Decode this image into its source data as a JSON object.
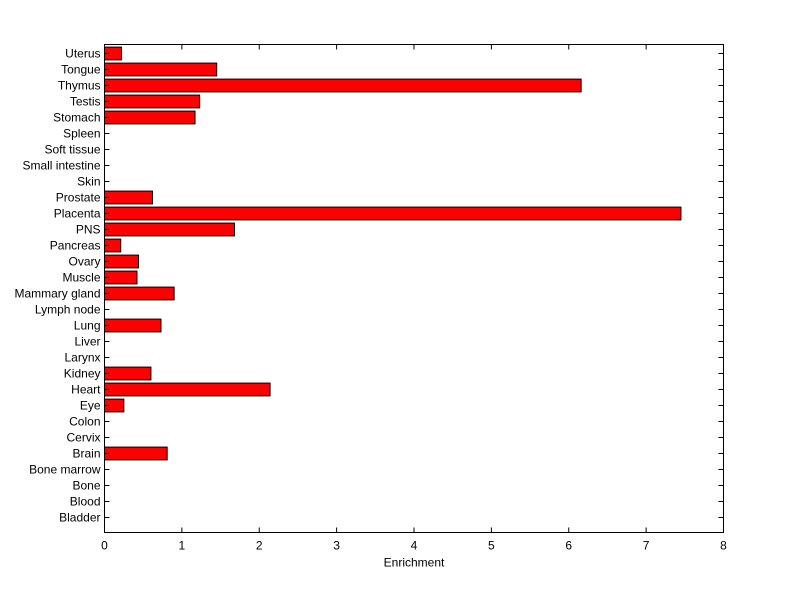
{
  "chart_data": {
    "type": "bar",
    "orientation": "horizontal",
    "categories": [
      "Uterus",
      "Tongue",
      "Thymus",
      "Testis",
      "Stomach",
      "Spleen",
      "Soft tissue",
      "Small intestine",
      "Skin",
      "Prostate",
      "Placenta",
      "PNS",
      "Pancreas",
      "Ovary",
      "Muscle",
      "Mammary gland",
      "Lymph node",
      "Lung",
      "Liver",
      "Larynx",
      "Kidney",
      "Heart",
      "Eye",
      "Colon",
      "Cervix",
      "Brain",
      "Bone marrow",
      "Bone",
      "Blood",
      "Bladder"
    ],
    "values": [
      0.22,
      1.45,
      6.16,
      1.23,
      1.17,
      0,
      0,
      0,
      0,
      0.62,
      7.45,
      1.68,
      0.21,
      0.44,
      0.42,
      0.9,
      0,
      0.73,
      0,
      0,
      0.6,
      2.14,
      0.25,
      0,
      0,
      0.81,
      0,
      0,
      0,
      0
    ],
    "xlabel": "Enrichment",
    "ylabel": "",
    "xlim": [
      0,
      8
    ],
    "xticks": [
      0,
      1,
      2,
      3,
      4,
      5,
      6,
      7,
      8
    ],
    "bar_color": "#ff0000",
    "edge_color": "#000000",
    "grid": false
  }
}
